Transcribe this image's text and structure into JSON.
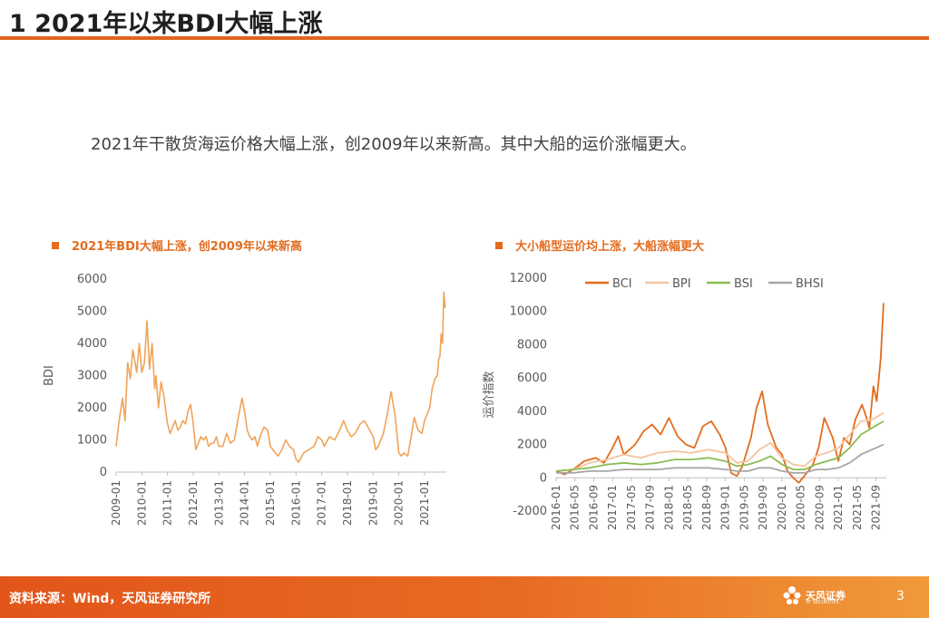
{
  "slide": {
    "title": "1 2021年以来BDI大幅上涨",
    "summary": "2021年干散货海运价格大幅上涨，创2009年以来新高。其中大船的运价涨幅更大。",
    "footer_source": "资料来源：Wind，天风证券研究所",
    "logo_text": "天风证券",
    "logo_sub": "TF SECURITIES",
    "page_number": "3"
  },
  "colors": {
    "accent": "#e36c1e",
    "bdi": "#f0a45a",
    "bci": "#e36c1e",
    "bpi": "#f5c4a0",
    "bsi": "#8cbc52",
    "bhsi": "#a6a6a6"
  },
  "chart_data": [
    {
      "type": "line",
      "title": "2021年BDI大幅上涨，创2009年以来新高",
      "xlabel": "",
      "ylabel": "BDI",
      "ylim": [
        0,
        6000
      ],
      "yticks": [
        "0",
        "1000",
        "2000",
        "3000",
        "4000",
        "5000",
        "6000"
      ],
      "xticks": [
        "2009-01",
        "2010-01",
        "2011-01",
        "2012-01",
        "2013-01",
        "2014-01",
        "2015-01",
        "2016-01",
        "2017-01",
        "2018-01",
        "2019-01",
        "2020-01",
        "2021-01"
      ],
      "grid": false,
      "series": [
        {
          "name": "BDI",
          "x": [
            2009.0,
            2009.1,
            2009.25,
            2009.35,
            2009.45,
            2009.55,
            2009.65,
            2009.8,
            2009.9,
            2010.0,
            2010.1,
            2010.2,
            2010.3,
            2010.4,
            2010.5,
            2010.55,
            2010.65,
            2010.75,
            2010.85,
            2011.0,
            2011.1,
            2011.2,
            2011.3,
            2011.4,
            2011.5,
            2011.6,
            2011.7,
            2011.8,
            2011.9,
            2012.0,
            2012.1,
            2012.2,
            2012.3,
            2012.4,
            2012.5,
            2012.6,
            2012.7,
            2012.8,
            2012.9,
            2013.0,
            2013.15,
            2013.3,
            2013.45,
            2013.6,
            2013.75,
            2013.9,
            2014.0,
            2014.1,
            2014.2,
            2014.3,
            2014.4,
            2014.5,
            2014.6,
            2014.75,
            2014.9,
            2015.0,
            2015.1,
            2015.3,
            2015.45,
            2015.6,
            2015.75,
            2015.9,
            2016.0,
            2016.1,
            2016.3,
            2016.5,
            2016.7,
            2016.85,
            2017.0,
            2017.1,
            2017.3,
            2017.5,
            2017.7,
            2017.85,
            2018.0,
            2018.15,
            2018.3,
            2018.5,
            2018.65,
            2018.8,
            2019.0,
            2019.1,
            2019.2,
            2019.4,
            2019.55,
            2019.7,
            2019.85,
            2020.0,
            2020.1,
            2020.2,
            2020.35,
            2020.5,
            2020.6,
            2020.75,
            2020.9,
            2021.0,
            2021.1,
            2021.2,
            2021.3,
            2021.4,
            2021.5,
            2021.55,
            2021.6,
            2021.65,
            2021.7,
            2021.75,
            2021.8
          ],
          "values": [
            800,
            1500,
            2300,
            1600,
            3400,
            2900,
            3800,
            3100,
            4000,
            3100,
            3400,
            4700,
            3200,
            4000,
            2600,
            3000,
            2000,
            2800,
            2400,
            1500,
            1200,
            1400,
            1600,
            1300,
            1400,
            1600,
            1500,
            1900,
            2100,
            1500,
            700,
            900,
            1100,
            1000,
            1100,
            800,
            900,
            900,
            1100,
            800,
            800,
            1200,
            900,
            1000,
            1700,
            2300,
            1900,
            1300,
            1100,
            1000,
            1100,
            800,
            1100,
            1400,
            1300,
            800,
            700,
            500,
            700,
            1000,
            800,
            700,
            400,
            300,
            600,
            700,
            800,
            1100,
            1000,
            800,
            1100,
            1000,
            1300,
            1600,
            1300,
            1100,
            1200,
            1500,
            1600,
            1400,
            1100,
            700,
            800,
            1200,
            1800,
            2500,
            1800,
            600,
            500,
            600,
            500,
            1200,
            1700,
            1300,
            1200,
            1600,
            1800,
            2000,
            2600,
            2900,
            3000,
            3500,
            3600,
            4300,
            4000,
            5600,
            5100
          ]
        }
      ]
    },
    {
      "type": "line",
      "title": "大小船型运价均上涨，大船涨幅更大",
      "xlabel": "",
      "ylabel": "运价指数",
      "ylim": [
        -2000,
        12000
      ],
      "yticks": [
        "-2000",
        "0",
        "2000",
        "4000",
        "6000",
        "8000",
        "10000",
        "12000"
      ],
      "xticks": [
        "2016-01",
        "2016-05",
        "2016-09",
        "2017-01",
        "2017-05",
        "2017-09",
        "2018-01",
        "2018-05",
        "2018-09",
        "2019-01",
        "2019-05",
        "2019-09",
        "2020-01",
        "2020-05",
        "2020-09",
        "2021-01",
        "2021-05",
        "2021-09"
      ],
      "grid": false,
      "legend": "top",
      "series": [
        {
          "name": "BCI",
          "x": [
            2016.0,
            2016.15,
            2016.3,
            2016.5,
            2016.7,
            2016.85,
            2017.0,
            2017.1,
            2017.2,
            2017.4,
            2017.55,
            2017.7,
            2017.85,
            2018.0,
            2018.15,
            2018.3,
            2018.45,
            2018.6,
            2018.75,
            2018.9,
            2019.0,
            2019.1,
            2019.2,
            2019.3,
            2019.45,
            2019.55,
            2019.65,
            2019.75,
            2019.9,
            2020.0,
            2020.1,
            2020.2,
            2020.3,
            2020.42,
            2020.55,
            2020.65,
            2020.75,
            2020.9,
            2021.0,
            2021.1,
            2021.2,
            2021.3,
            2021.42,
            2021.5,
            2021.55,
            2021.62,
            2021.68,
            2021.75,
            2021.8
          ],
          "values": [
            400,
            200,
            500,
            1000,
            1200,
            900,
            1800,
            2500,
            1400,
            2000,
            2800,
            3200,
            2600,
            3600,
            2500,
            2000,
            1800,
            3100,
            3400,
            2600,
            1800,
            300,
            100,
            700,
            2400,
            4200,
            5200,
            3200,
            1800,
            1400,
            400,
            0,
            -300,
            200,
            800,
            1800,
            3600,
            2400,
            1000,
            2400,
            2000,
            3500,
            4400,
            3600,
            3000,
            5500,
            4600,
            7200,
            10500
          ]
        },
        {
          "name": "BPI",
          "x": [
            2016.0,
            2016.3,
            2016.6,
            2016.9,
            2017.2,
            2017.5,
            2017.8,
            2018.1,
            2018.4,
            2018.7,
            2019.0,
            2019.2,
            2019.4,
            2019.6,
            2019.8,
            2020.0,
            2020.2,
            2020.4,
            2020.6,
            2020.8,
            2021.0,
            2021.2,
            2021.4,
            2021.6,
            2021.8
          ],
          "values": [
            400,
            500,
            900,
            1100,
            1400,
            1200,
            1500,
            1600,
            1500,
            1700,
            1500,
            900,
            1000,
            1700,
            2100,
            1200,
            800,
            700,
            1300,
            1500,
            1800,
            2600,
            3400,
            3500,
            3900
          ]
        },
        {
          "name": "BSI",
          "x": [
            2016.0,
            2016.3,
            2016.6,
            2016.9,
            2017.2,
            2017.5,
            2017.8,
            2018.1,
            2018.4,
            2018.7,
            2019.0,
            2019.2,
            2019.4,
            2019.6,
            2019.8,
            2020.0,
            2020.2,
            2020.4,
            2020.6,
            2020.8,
            2021.0,
            2021.2,
            2021.4,
            2021.6,
            2021.8
          ],
          "values": [
            400,
            500,
            600,
            800,
            900,
            800,
            900,
            1100,
            1100,
            1200,
            1000,
            700,
            800,
            1000,
            1300,
            800,
            500,
            500,
            800,
            1000,
            1200,
            1800,
            2600,
            3000,
            3400
          ]
        },
        {
          "name": "BHSI",
          "x": [
            2016.0,
            2016.3,
            2016.6,
            2016.9,
            2017.2,
            2017.5,
            2017.8,
            2018.1,
            2018.4,
            2018.7,
            2019.0,
            2019.2,
            2019.4,
            2019.6,
            2019.8,
            2020.0,
            2020.2,
            2020.4,
            2020.6,
            2020.8,
            2021.0,
            2021.2,
            2021.4,
            2021.6,
            2021.8
          ],
          "values": [
            300,
            300,
            400,
            400,
            500,
            500,
            500,
            600,
            600,
            600,
            500,
            400,
            400,
            600,
            600,
            400,
            300,
            300,
            500,
            500,
            600,
            900,
            1400,
            1700,
            2000
          ]
        }
      ]
    }
  ]
}
